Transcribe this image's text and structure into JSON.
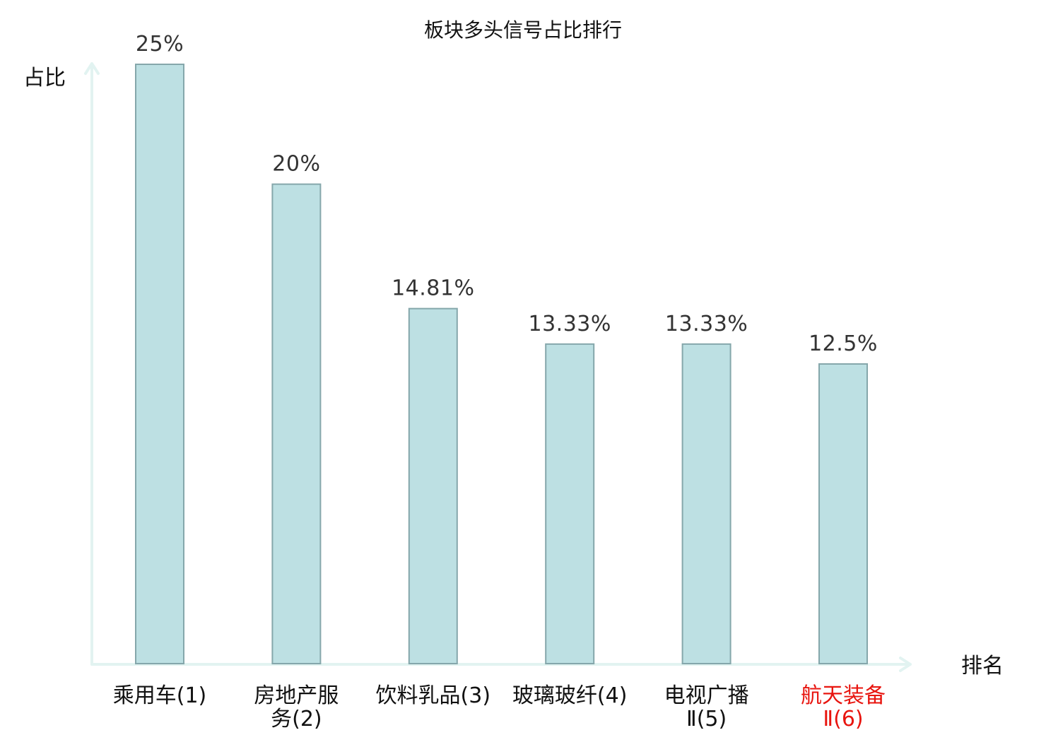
{
  "chart_data": {
    "type": "bar",
    "title": "板块多头信号占比排行",
    "ylabel": "占比",
    "xlabel": "排名",
    "ylim": [
      0,
      25
    ],
    "grid": false,
    "categories": [
      [
        "乘用车(1)"
      ],
      [
        "房地产服",
        "务(2)"
      ],
      [
        "饮料乳品(3)"
      ],
      [
        "玻璃玻纤(4)"
      ],
      [
        "电视广播",
        "Ⅱ(5)"
      ],
      [
        "航天装备",
        "Ⅱ(6)"
      ]
    ],
    "values": [
      25,
      20,
      14.81,
      13.33,
      13.33,
      12.5
    ],
    "value_labels": [
      "25%",
      "20%",
      "14.81%",
      "13.33%",
      "13.33%",
      "12.5%"
    ],
    "highlight_index": 5,
    "colors": {
      "bar_fill": "#bde0e3",
      "bar_stroke": "#85a7ab",
      "axis": "#e2f3f1",
      "highlight_text": "#e8150f"
    }
  }
}
